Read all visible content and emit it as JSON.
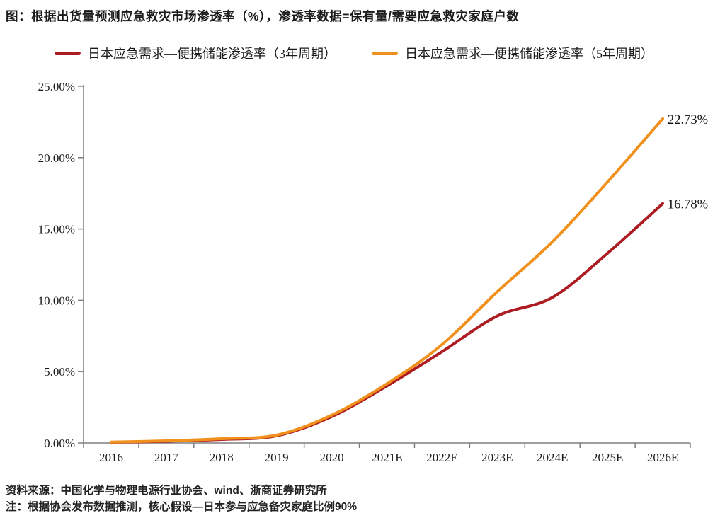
{
  "title": "图：根据出货量预测应急救灾市场渗透率（%），渗透率数据=保有量/需要应急救灾家庭户数",
  "legend": [
    {
      "label": "日本应急需求—便携储能渗透率（3年周期）",
      "color": "#AE1C23"
    },
    {
      "label": "日本应急需求—便携储能渗透率（5年周期）",
      "color": "#F0901D"
    }
  ],
  "chart_data": {
    "type": "line",
    "title": "根据出货量预测应急救灾市场渗透率（%）",
    "categories": [
      "2016",
      "2017",
      "2018",
      "2019",
      "2020",
      "2021E",
      "2022E",
      "2023E",
      "2024E",
      "2025E",
      "2026E"
    ],
    "series": [
      {
        "name": "日本应急需求—便携储能渗透率（3年周期）",
        "color": "#AE1C23",
        "values": [
          0.05,
          0.12,
          0.25,
          0.5,
          1.85,
          4.0,
          6.4,
          8.9,
          10.2,
          13.3,
          16.78
        ],
        "end_label": "16.78%"
      },
      {
        "name": "日本应急需求—便携储能渗透率（5年周期）",
        "color": "#F0901D",
        "values": [
          0.06,
          0.15,
          0.3,
          0.55,
          1.95,
          4.15,
          6.9,
          10.6,
          14.1,
          18.3,
          22.73
        ],
        "end_label": "22.73%"
      }
    ],
    "xlabel": "",
    "ylabel": "",
    "ylim": [
      0,
      25
    ],
    "ytick_step": 5,
    "ytick_labels": [
      "0.00%",
      "5.00%",
      "10.00%",
      "15.00%",
      "20.00%",
      "25.00%"
    ],
    "grid": false,
    "smooth": true,
    "legend_position": "top"
  },
  "footer": {
    "source": "资料来源：中国化学与物理电源行业协会、wind、浙商证券研究所",
    "note": "注：根据协会发布数据推测，核心假设—日本参与应急备灾家庭比例90%"
  },
  "colors": {
    "axis": "#7F7F7F",
    "text": "#1A1A1A",
    "background": "#FFFFFF"
  }
}
